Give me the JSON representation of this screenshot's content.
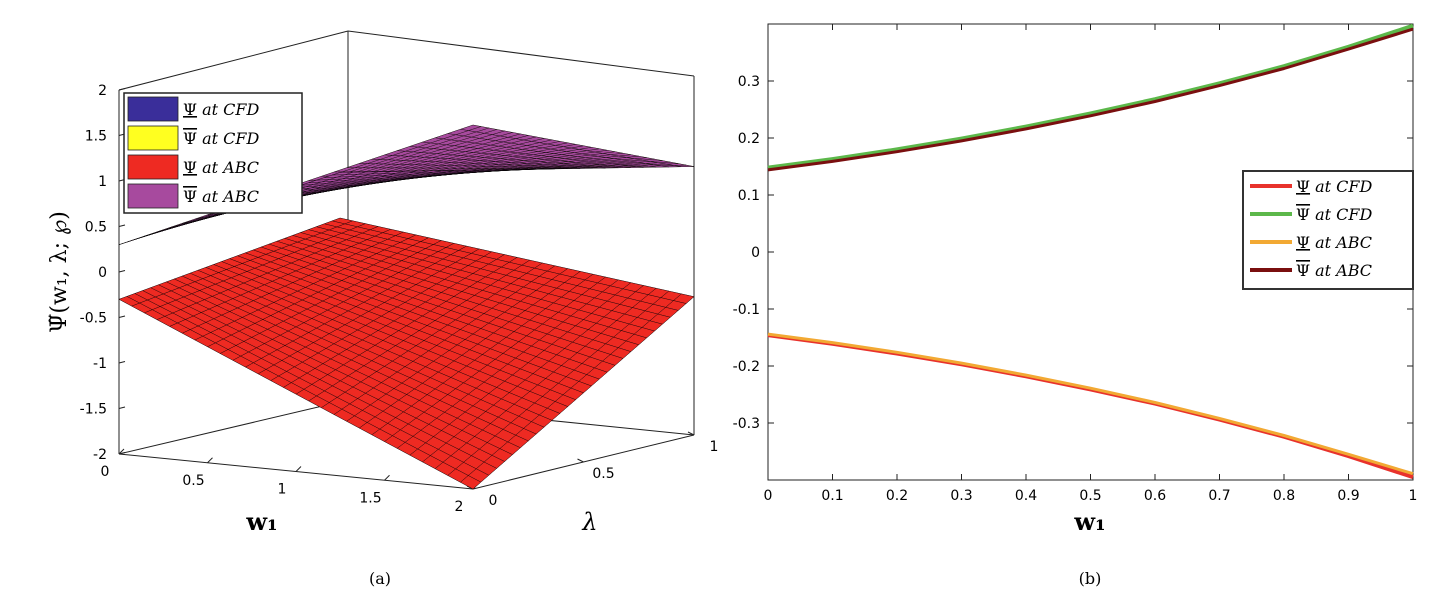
{
  "chart_data": [
    {
      "panel_label": "(a)",
      "type": "surface",
      "xlabel": "w1",
      "ylabel": "λ",
      "zlabel": "Ψ̃(w1, λ; ℘)",
      "x_range": [
        0,
        2
      ],
      "y_range": [
        0,
        1
      ],
      "zlim": [
        -2,
        2
      ],
      "x_ticks": [
        "0",
        "0.5",
        "1",
        "1.5",
        "2"
      ],
      "y_ticks": [
        "0",
        "0.5",
        "1"
      ],
      "z_ticks": [
        "2",
        "1.5",
        "1",
        "0.5",
        "0",
        "-0.5",
        "-1",
        "-1.5",
        "-2"
      ],
      "legend": [
        "Ψ at CFD",
        "Ψ̄ at CFD",
        "Ψ at ABC",
        "Ψ̄ at ABC"
      ],
      "legend_placement": "top-left",
      "series": [
        {
          "name": "Ψ at CFD",
          "color": "#3a2e9a",
          "corners": {
            "w0_l0": -0.3,
            "w2_l0": -2.0,
            "w2_l1": -0.48,
            "w0_l1": 0.0
          }
        },
        {
          "name": "Ψ̄ at CFD",
          "color": "#ffff20",
          "corners": {
            "w0_l0": 0.3,
            "w2_l0": 2.0,
            "w2_l1": 0.95,
            "w0_l1": 0.5
          }
        },
        {
          "name": "Ψ at ABC",
          "color": "#ee2a22",
          "corners": {
            "w0_l0": -0.3,
            "w2_l0": -2.0,
            "w2_l1": -0.48,
            "w0_l1": 0.0
          }
        },
        {
          "name": "Ψ̄ at ABC",
          "color": "#a74a9e",
          "corners": {
            "w0_l0": 0.3,
            "w2_l0": 2.0,
            "w2_l1": 0.95,
            "w0_l1": 0.5
          }
        }
      ]
    },
    {
      "panel_label": "(b)",
      "type": "line",
      "xlabel": "w1",
      "ylabel": "",
      "xlim": [
        0,
        1
      ],
      "ylim": [
        -0.4,
        0.4
      ],
      "x_ticks": [
        0,
        0.1,
        0.2,
        0.3,
        0.4,
        0.5,
        0.6,
        0.7,
        0.8,
        0.9,
        1
      ],
      "x_tick_labels": [
        "0",
        "0.1",
        "0.2",
        "0.3",
        "0.4",
        "0.5",
        "0.6",
        "0.7",
        "0.8",
        "0.9",
        "1"
      ],
      "y_ticks": [
        0.3,
        0.2,
        0.1,
        0,
        -0.1,
        -0.2,
        -0.3
      ],
      "y_tick_labels": [
        "0.3",
        "0.2",
        "0.1",
        "0",
        "-0.1",
        "-0.2",
        "-0.3"
      ],
      "legend_placement": "right",
      "x": [
        0,
        0.1,
        0.2,
        0.3,
        0.4,
        0.5,
        0.6,
        0.7,
        0.8,
        0.9,
        1
      ],
      "series": [
        {
          "name": "Ψ at CFD",
          "color": "#e8322c",
          "values": [
            -0.146,
            -0.161,
            -0.178,
            -0.197,
            -0.218,
            -0.241,
            -0.266,
            -0.294,
            -0.324,
            -0.358,
            -0.395
          ]
        },
        {
          "name": "Ψ̄ at CFD",
          "color": "#5cb84a",
          "values": [
            0.148,
            0.163,
            0.18,
            0.199,
            0.22,
            0.243,
            0.268,
            0.296,
            0.326,
            0.36,
            0.397
          ]
        },
        {
          "name": "Ψ at ABC",
          "color": "#f2a933",
          "values": [
            -0.144,
            -0.159,
            -0.176,
            -0.195,
            -0.216,
            -0.239,
            -0.264,
            -0.292,
            -0.322,
            -0.355,
            -0.389
          ]
        },
        {
          "name": "Ψ̄ at ABC",
          "color": "#7a0f0f",
          "values": [
            0.144,
            0.159,
            0.176,
            0.195,
            0.216,
            0.239,
            0.264,
            0.292,
            0.322,
            0.356,
            0.391
          ]
        }
      ]
    }
  ]
}
